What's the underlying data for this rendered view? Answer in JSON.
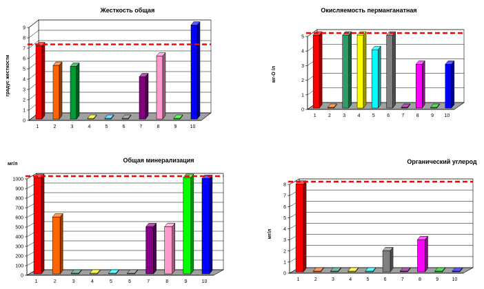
{
  "chart_data": [
    {
      "type": "bar",
      "title": "Жесткость общая",
      "ylabel": "градус жесткости",
      "xlabel": "",
      "categories": [
        "1",
        "2",
        "3",
        "4",
        "5",
        "6",
        "7",
        "8",
        "9",
        "10"
      ],
      "values": [
        7.1,
        5.2,
        5.1,
        0,
        0,
        0,
        4.1,
        6.1,
        0,
        9.1
      ],
      "colors": [
        "#ff0000",
        "#ff6600",
        "#009933",
        "#ffff00",
        "#33ccff",
        "#808080",
        "#800080",
        "#ff99cc",
        "#00ff00",
        "#0000ff"
      ],
      "ylim": [
        0,
        9
      ],
      "yticks": [
        "0",
        "1",
        "2",
        "3",
        "4",
        "5",
        "6",
        "7",
        "8",
        "9"
      ],
      "reference_line": 7,
      "reference_color": "#ff0000",
      "grid": true
    },
    {
      "type": "bar",
      "title": "Окисляемость перманганатная",
      "ylabel": "мг-О /л",
      "xlabel": "",
      "categories": [
        "1",
        "2",
        "3",
        "4",
        "5",
        "6",
        "7",
        "8",
        "9",
        "10"
      ],
      "values": [
        5,
        0,
        5,
        5,
        4,
        5,
        0,
        3,
        0,
        3
      ],
      "colors": [
        "#ff0000",
        "#ff6600",
        "#339966",
        "#ffff00",
        "#00ffff",
        "#808080",
        "#800080",
        "#ff00ff",
        "#00cc00",
        "#0000ff"
      ],
      "ylim": [
        0,
        5
      ],
      "yticks": [
        "0",
        "1",
        "2",
        "3",
        "4",
        "5"
      ],
      "reference_line": 5,
      "reference_color": "#ff0000",
      "grid": true
    },
    {
      "type": "bar",
      "title": "Общая минерализация",
      "ylabel": "мг/л",
      "xlabel": "",
      "categories": [
        "1",
        "2",
        "3",
        "4",
        "5",
        "6",
        "7",
        "8",
        "9",
        "10"
      ],
      "values": [
        1000,
        590,
        0,
        0,
        0,
        0,
        490,
        490,
        1000,
        990
      ],
      "colors": [
        "#ff0000",
        "#ff6600",
        "#339966",
        "#ffff00",
        "#00ffff",
        "#808080",
        "#800080",
        "#ff99cc",
        "#00ff00",
        "#0000ff"
      ],
      "ylim": [
        0,
        1000
      ],
      "yticks": [
        "0",
        "100",
        "200",
        "300",
        "400",
        "500",
        "600",
        "700",
        "800",
        "900",
        "1000"
      ],
      "reference_line": 1000,
      "reference_color": "#ff0000",
      "grid": true
    },
    {
      "type": "bar",
      "title": "Органический углерод",
      "ylabel": "мг/л",
      "xlabel": "",
      "categories": [
        "1",
        "2",
        "3",
        "4",
        "5",
        "6",
        "7",
        "8",
        "9",
        "10"
      ],
      "values": [
        7.9,
        0,
        0,
        0,
        0,
        1.9,
        0,
        2.9,
        0,
        0
      ],
      "colors": [
        "#ff0000",
        "#ff6600",
        "#339966",
        "#ffff00",
        "#00ffff",
        "#808080",
        "#800080",
        "#ff00ff",
        "#00cc00",
        "#0000ff"
      ],
      "ylim": [
        0,
        8
      ],
      "yticks": [
        "0",
        "1",
        "2",
        "3",
        "4",
        "5",
        "6",
        "7",
        "8"
      ],
      "reference_line": 8,
      "reference_color": "#ff0000",
      "grid": true
    }
  ]
}
